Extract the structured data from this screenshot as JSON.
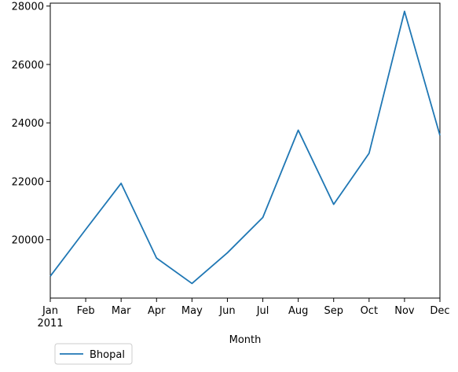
{
  "chart_data": {
    "type": "line",
    "x": [
      "Jan",
      "Feb",
      "Mar",
      "Apr",
      "May",
      "Jun",
      "Jul",
      "Aug",
      "Sep",
      "Oct",
      "Nov",
      "Dec"
    ],
    "x_year_label": "2011",
    "series": [
      {
        "name": "Bhopal",
        "color": "#1f77b4",
        "values": [
          18750,
          20350,
          21930,
          19370,
          18500,
          19550,
          20760,
          23750,
          21210,
          22960,
          27820,
          23570
        ]
      }
    ],
    "xlabel": "Month",
    "ylabel": "",
    "ylim": [
      18000,
      28100
    ],
    "yticks": [
      20000,
      22000,
      24000,
      26000,
      28000
    ],
    "ytick_labels": [
      "20000",
      "22000",
      "24000",
      "26000",
      "28000"
    ],
    "grid": false,
    "legend_position": "below-left"
  }
}
